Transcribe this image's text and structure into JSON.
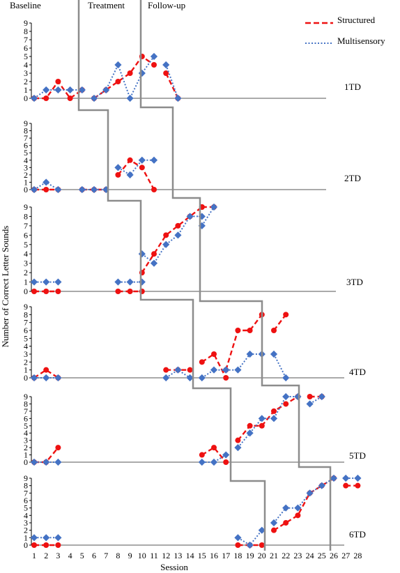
{
  "chart_data": {
    "type": "line",
    "phases": [
      "Baseline",
      "Treatment",
      "Follow-up"
    ],
    "xlabel": "Session",
    "ylabel": "Number of Correct Letter Sounds",
    "x_ticks": [
      "1",
      "2",
      "3",
      "4",
      "5",
      "6",
      "7",
      "8",
      "9",
      "10",
      "11",
      "12",
      "13",
      "14",
      "15",
      "16",
      "17",
      "18",
      "19",
      "20",
      "21",
      "22",
      "23",
      "24",
      "25",
      "26",
      "27",
      "28"
    ],
    "y_ticks": [
      "0",
      "1",
      "2",
      "3",
      "4",
      "5",
      "6",
      "7",
      "8",
      "9"
    ],
    "ylim": [
      0,
      9
    ],
    "legend": {
      "position": "top-right",
      "entries": [
        {
          "name": "Structured",
          "color": "#ee1111",
          "style": "dashed"
        },
        {
          "name": "Multisensory",
          "color": "#4472c4",
          "style": "dotted"
        }
      ]
    },
    "panels": [
      {
        "label": "1TD",
        "series": [
          {
            "name": "Structured",
            "segments": [
              [
                [
                  1,
                  0
                ],
                [
                  2,
                  0
                ],
                [
                  3,
                  2
                ],
                [
                  4,
                  0
                ],
                [
                  5,
                  1
                ]
              ],
              [
                [
                  6,
                  0
                ],
                [
                  7,
                  1
                ],
                [
                  8,
                  2
                ],
                [
                  9,
                  3
                ],
                [
                  10,
                  5
                ],
                [
                  11,
                  4
                ]
              ],
              [
                [
                  12,
                  3
                ],
                [
                  13,
                  0
                ]
              ]
            ]
          },
          {
            "name": "Multisensory",
            "segments": [
              [
                [
                  1,
                  0
                ],
                [
                  2,
                  1
                ],
                [
                  3,
                  1
                ],
                [
                  4,
                  1
                ],
                [
                  5,
                  1
                ]
              ],
              [
                [
                  6,
                  0
                ],
                [
                  7,
                  1
                ],
                [
                  8,
                  4
                ],
                [
                  9,
                  0
                ],
                [
                  10,
                  3
                ],
                [
                  11,
                  5
                ]
              ],
              [
                [
                  12,
                  4
                ],
                [
                  13,
                  0
                ]
              ]
            ]
          }
        ]
      },
      {
        "label": "2TD",
        "series": [
          {
            "name": "Structured",
            "segments": [
              [
                [
                  1,
                  0
                ],
                [
                  2,
                  0
                ],
                [
                  3,
                  0
                ]
              ],
              [
                [
                  5,
                  0
                ],
                [
                  6,
                  0
                ],
                [
                  7,
                  0
                ]
              ],
              [
                [
                  8,
                  2
                ],
                [
                  9,
                  4
                ],
                [
                  10,
                  3
                ],
                [
                  11,
                  0
                ]
              ]
            ]
          },
          {
            "name": "Multisensory",
            "segments": [
              [
                [
                  1,
                  0
                ],
                [
                  2,
                  1
                ],
                [
                  3,
                  0
                ]
              ],
              [
                [
                  5,
                  0
                ],
                [
                  6,
                  0
                ],
                [
                  7,
                  0
                ]
              ],
              [
                [
                  8,
                  3
                ],
                [
                  9,
                  2
                ],
                [
                  10,
                  4
                ],
                [
                  11,
                  4
                ]
              ]
            ]
          }
        ]
      },
      {
        "label": "3TD",
        "series": [
          {
            "name": "Structured",
            "segments": [
              [
                [
                  1,
                  0
                ],
                [
                  2,
                  0
                ],
                [
                  3,
                  0
                ]
              ],
              [
                [
                  8,
                  0
                ],
                [
                  9,
                  0
                ],
                [
                  10,
                  0
                ]
              ],
              [
                [
                  10,
                  2
                ],
                [
                  11,
                  4
                ],
                [
                  12,
                  6
                ],
                [
                  13,
                  7
                ],
                [
                  14,
                  8
                ],
                [
                  15,
                  9
                ]
              ],
              [
                [
                  15,
                  9
                ],
                [
                  16,
                  9
                ]
              ]
            ]
          },
          {
            "name": "Multisensory",
            "segments": [
              [
                [
                  1,
                  1
                ],
                [
                  2,
                  1
                ],
                [
                  3,
                  1
                ]
              ],
              [
                [
                  8,
                  1
                ],
                [
                  9,
                  1
                ],
                [
                  10,
                  1
                ]
              ],
              [
                [
                  10,
                  4
                ],
                [
                  11,
                  3
                ],
                [
                  12,
                  5
                ],
                [
                  13,
                  6
                ],
                [
                  14,
                  8
                ],
                [
                  15,
                  8
                ]
              ],
              [
                [
                  15,
                  7
                ],
                [
                  16,
                  9
                ]
              ]
            ]
          }
        ]
      },
      {
        "label": "4TD",
        "series": [
          {
            "name": "Structured",
            "segments": [
              [
                [
                  1,
                  0
                ],
                [
                  2,
                  1
                ],
                [
                  3,
                  0
                ]
              ],
              [
                [
                  12,
                  1
                ],
                [
                  13,
                  1
                ],
                [
                  14,
                  1
                ]
              ],
              [
                [
                  15,
                  2
                ],
                [
                  16,
                  3
                ],
                [
                  17,
                  0
                ]
              ],
              [
                [
                  17,
                  1
                ],
                [
                  18,
                  6
                ],
                [
                  19,
                  6
                ],
                [
                  20,
                  8
                ]
              ],
              [
                [
                  21,
                  6
                ],
                [
                  22,
                  8
                ]
              ]
            ]
          },
          {
            "name": "Multisensory",
            "segments": [
              [
                [
                  1,
                  0
                ],
                [
                  2,
                  0
                ],
                [
                  3,
                  0
                ]
              ],
              [
                [
                  12,
                  0
                ],
                [
                  13,
                  1
                ],
                [
                  14,
                  0
                ]
              ],
              [
                [
                  15,
                  0
                ],
                [
                  16,
                  1
                ],
                [
                  17,
                  1
                ]
              ],
              [
                [
                  17,
                  1
                ],
                [
                  18,
                  1
                ],
                [
                  19,
                  3
                ],
                [
                  20,
                  3
                ]
              ],
              [
                [
                  21,
                  3
                ],
                [
                  22,
                  0
                ]
              ]
            ]
          }
        ]
      },
      {
        "label": "5TD",
        "series": [
          {
            "name": "Structured",
            "segments": [
              [
                [
                  1,
                  0
                ],
                [
                  2,
                  0
                ],
                [
                  3,
                  2
                ]
              ],
              [
                [
                  15,
                  1
                ],
                [
                  16,
                  2
                ],
                [
                  17,
                  0
                ]
              ],
              [
                [
                  18,
                  3
                ],
                [
                  19,
                  5
                ],
                [
                  20,
                  5
                ],
                [
                  21,
                  7
                ],
                [
                  22,
                  8
                ],
                [
                  23,
                  9
                ]
              ],
              [
                [
                  24,
                  9
                ],
                [
                  25,
                  9
                ]
              ]
            ]
          },
          {
            "name": "Multisensory",
            "segments": [
              [
                [
                  1,
                  0
                ],
                [
                  2,
                  0
                ],
                [
                  3,
                  0
                ]
              ],
              [
                [
                  15,
                  0
                ],
                [
                  16,
                  0
                ],
                [
                  17,
                  1
                ]
              ],
              [
                [
                  18,
                  2
                ],
                [
                  19,
                  4
                ],
                [
                  20,
                  6
                ],
                [
                  21,
                  6
                ],
                [
                  22,
                  9
                ],
                [
                  23,
                  9
                ]
              ],
              [
                [
                  24,
                  8
                ],
                [
                  25,
                  9
                ]
              ]
            ]
          }
        ]
      },
      {
        "label": "6TD",
        "series": [
          {
            "name": "Structured",
            "segments": [
              [
                [
                  1,
                  0
                ],
                [
                  2,
                  0
                ],
                [
                  3,
                  0
                ]
              ],
              [
                [
                  18,
                  0
                ],
                [
                  19,
                  0
                ],
                [
                  20,
                  0
                ]
              ],
              [
                [
                  21,
                  2
                ],
                [
                  22,
                  3
                ],
                [
                  23,
                  4
                ],
                [
                  24,
                  7
                ],
                [
                  25,
                  8
                ],
                [
                  26,
                  9
                ]
              ],
              [
                [
                  27,
                  8
                ],
                [
                  28,
                  8
                ]
              ]
            ]
          },
          {
            "name": "Multisensory",
            "segments": [
              [
                [
                  1,
                  1
                ],
                [
                  2,
                  1
                ],
                [
                  3,
                  1
                ]
              ],
              [
                [
                  18,
                  1
                ],
                [
                  19,
                  0
                ],
                [
                  20,
                  2
                ]
              ],
              [
                [
                  21,
                  3
                ],
                [
                  22,
                  5
                ],
                [
                  23,
                  5
                ],
                [
                  24,
                  7
                ],
                [
                  25,
                  8
                ],
                [
                  26,
                  9
                ]
              ],
              [
                [
                  27,
                  9
                ],
                [
                  28,
                  9
                ]
              ]
            ]
          }
        ]
      }
    ]
  }
}
